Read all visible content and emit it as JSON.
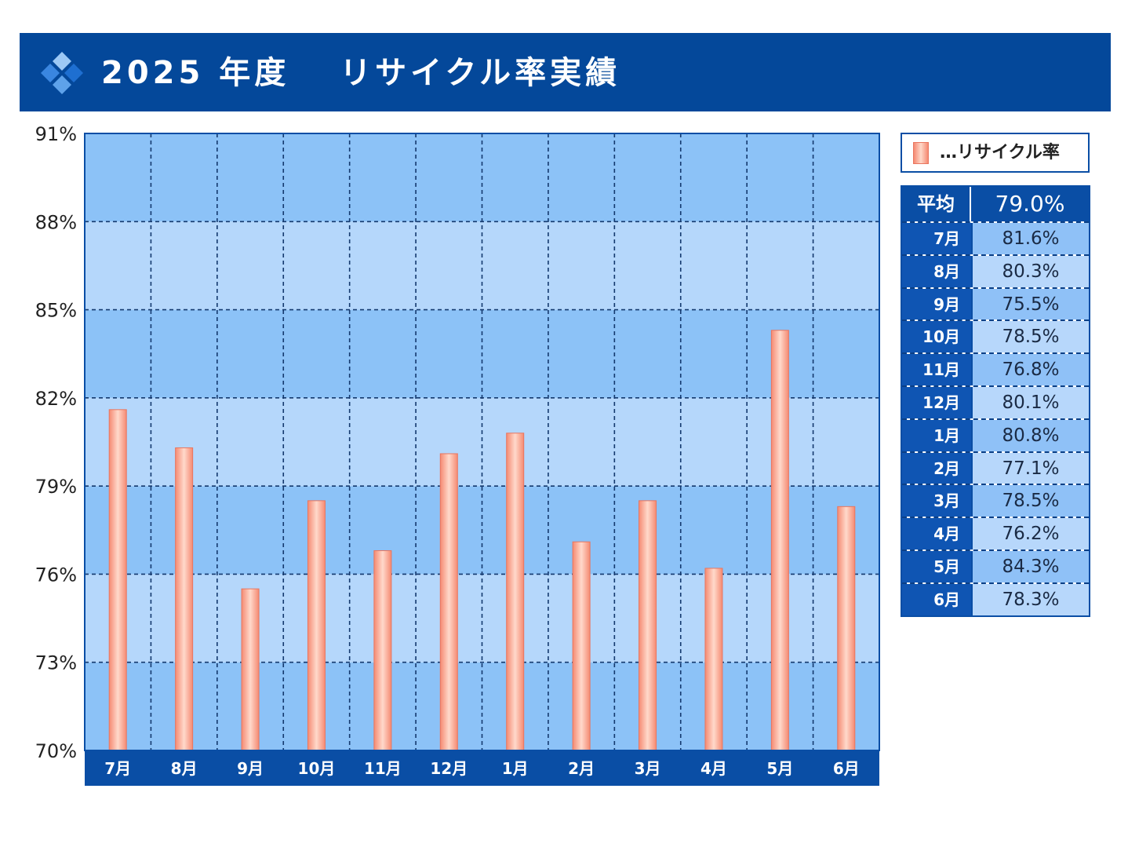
{
  "header": {
    "title": "2025 年度　 リサイクル率実績"
  },
  "colors": {
    "header_bg": "#04489a",
    "band_dark": "#8cc2f7",
    "band_light": "#b5d7fb",
    "bar": "#f58a72",
    "axis_bar": "#0a4ea5"
  },
  "legend": {
    "label": "…リサイクル率"
  },
  "average": {
    "label": "平均",
    "value": "79.0%"
  },
  "table": [
    {
      "month": "7月",
      "value": "81.6%"
    },
    {
      "month": "8月",
      "value": "80.3%"
    },
    {
      "month": "9月",
      "value": "75.5%"
    },
    {
      "month": "10月",
      "value": "78.5%"
    },
    {
      "month": "11月",
      "value": "76.8%"
    },
    {
      "month": "12月",
      "value": "80.1%"
    },
    {
      "month": "1月",
      "value": "80.8%"
    },
    {
      "month": "2月",
      "value": "77.1%"
    },
    {
      "month": "3月",
      "value": "78.5%"
    },
    {
      "month": "4月",
      "value": "76.2%"
    },
    {
      "month": "5月",
      "value": "84.3%"
    },
    {
      "month": "6月",
      "value": "78.3%"
    }
  ],
  "chart_data": {
    "type": "bar",
    "categories": [
      "7月",
      "8月",
      "9月",
      "10月",
      "11月",
      "12月",
      "1月",
      "2月",
      "3月",
      "4月",
      "5月",
      "6月"
    ],
    "series": [
      {
        "name": "リサイクル率",
        "values": [
          81.6,
          80.3,
          75.5,
          78.5,
          76.8,
          80.1,
          80.8,
          77.1,
          78.5,
          76.2,
          84.3,
          78.3
        ]
      }
    ],
    "ylim": [
      70,
      91
    ],
    "y_ticks": [
      70,
      73,
      76,
      79,
      82,
      85,
      88,
      91
    ],
    "y_tick_labels": [
      "70%",
      "73%",
      "76%",
      "79%",
      "82%",
      "85%",
      "88%",
      "91%"
    ],
    "grid": true,
    "legend_position": "top-right"
  }
}
